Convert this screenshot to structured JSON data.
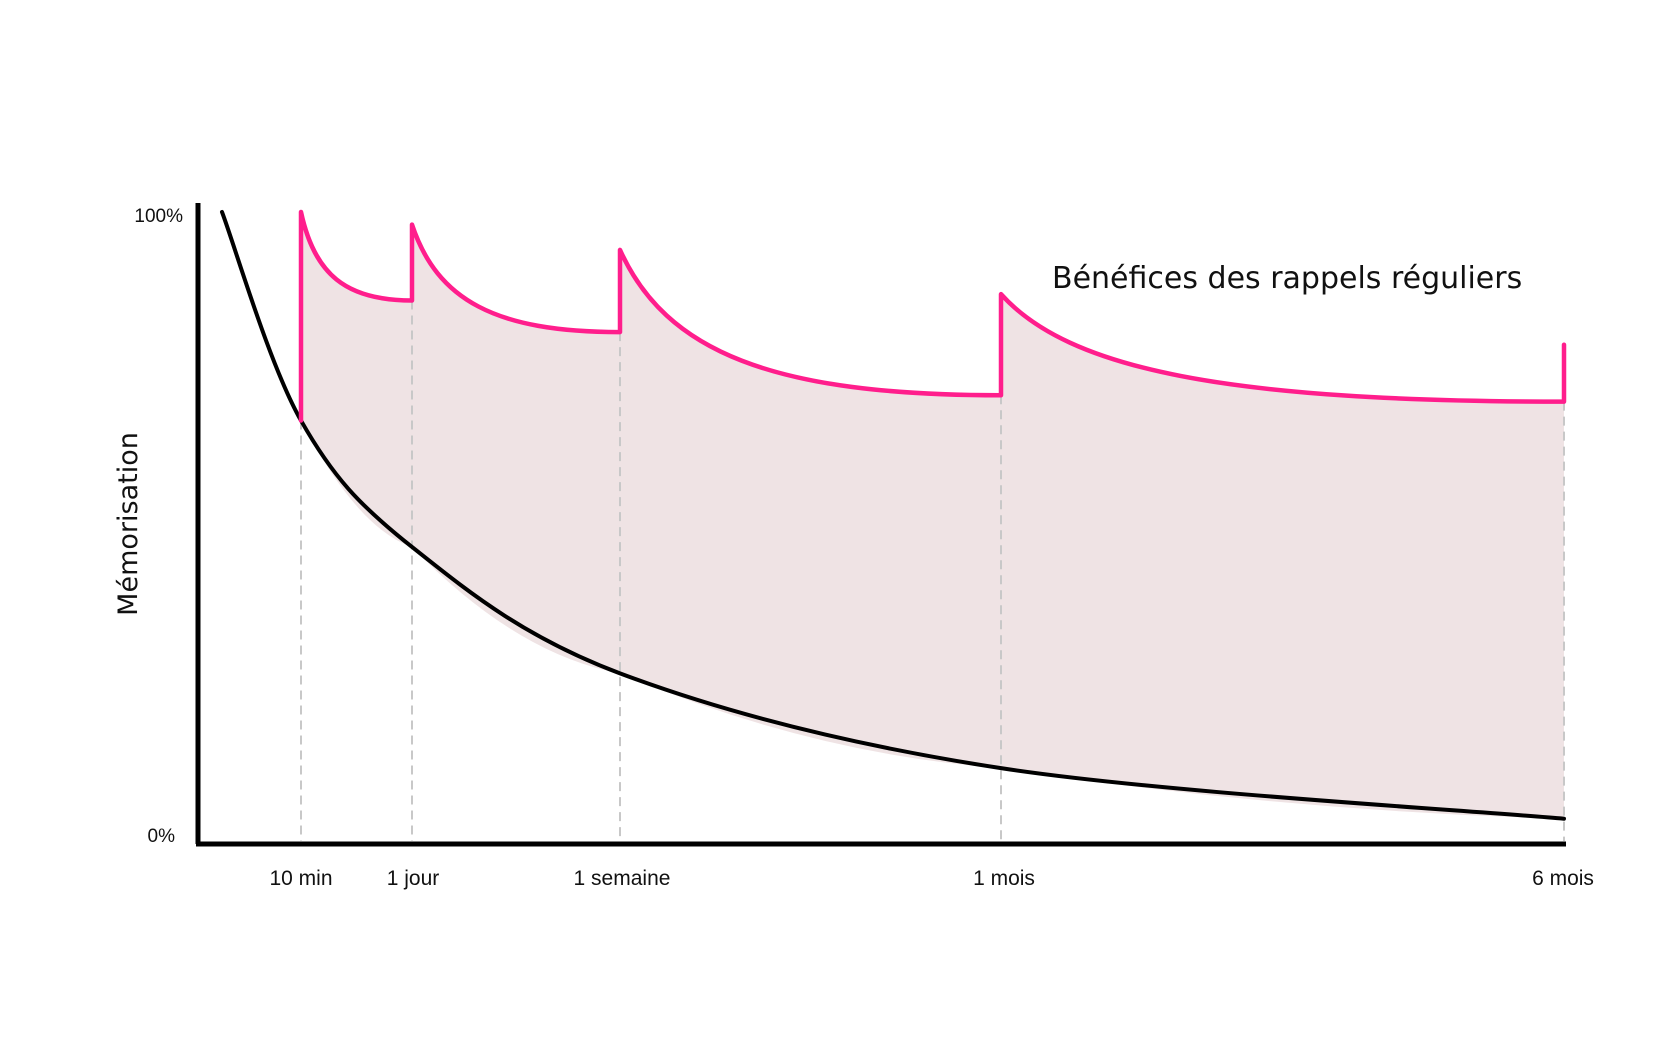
{
  "chart_data": {
    "type": "line",
    "title": "",
    "ylabel": "Mémorisation",
    "xlabel": "",
    "y_tick_labels": [
      "100%",
      "0%"
    ],
    "ylim": [
      0,
      100
    ],
    "x_tick_labels": [
      "10 min",
      "1 jour",
      "1 semaine",
      "1 mois",
      "6 mois"
    ],
    "annotation": "Bénéfices des rappels réguliers",
    "grid": false,
    "colors": {
      "forgetting": "#000000",
      "reviews": "#ff1e8c",
      "benefit_fill": "#efe3e4",
      "guide": "#c8c8c8"
    },
    "forgetting_curve": [
      {
        "t": "0",
        "y": 100
      },
      {
        "t": "10 min",
        "y": 67
      },
      {
        "t": "1 jour",
        "y": 47
      },
      {
        "t": "1 semaine",
        "y": 27
      },
      {
        "t": "1 mois",
        "y": 12
      },
      {
        "t": "6 mois",
        "y": 4
      }
    ],
    "review_curve": [
      {
        "t": "10 min",
        "before": 67,
        "after": 100
      },
      {
        "t": "1 jour",
        "before": 86,
        "after": 98
      },
      {
        "t": "1 semaine",
        "before": 81,
        "after": 94
      },
      {
        "t": "1 mois",
        "before": 71,
        "after": 87
      },
      {
        "t": "6 mois",
        "before": 70,
        "after": 79
      }
    ]
  }
}
